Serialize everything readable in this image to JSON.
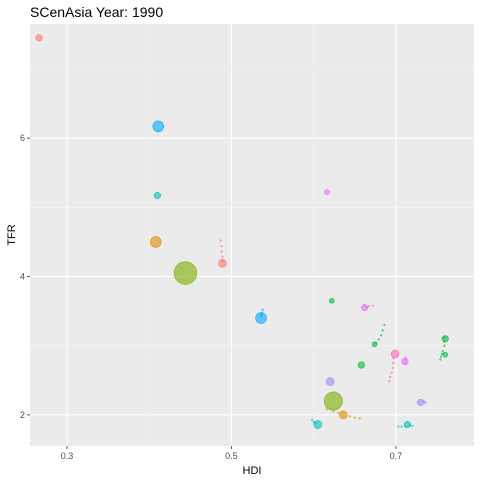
{
  "chart_data": {
    "type": "scatter",
    "title": "SCenAsia Year: 1990",
    "xlabel": "HDI",
    "ylabel": "TFR",
    "xlim": [
      0.255,
      0.795
    ],
    "ylim": [
      1.55,
      7.65
    ],
    "x_ticks": [
      0.3,
      0.5,
      0.7
    ],
    "x_tick_labels": [
      "0.3",
      "0.5",
      "0.7"
    ],
    "y_ticks": [
      2,
      4,
      6
    ],
    "y_tick_labels": [
      "2",
      "4",
      "6"
    ],
    "grid": true,
    "legend": "none",
    "colors": {
      "panel_bg": "#ebebeb",
      "grid_major": "#ffffff",
      "grid_minor": "#f5f5f5",
      "red": "#f8766d",
      "orange": "#e08b00",
      "olive": "#7cae00",
      "green": "#00ba38",
      "teal": "#00bfc4",
      "blue": "#00a9ff",
      "violet": "#9590ff",
      "magenta": "#e76bf3",
      "pink": "#ff62bc"
    },
    "points": [
      {
        "x": 0.266,
        "y": 7.45,
        "size": 3,
        "color": "#f8766d"
      },
      {
        "x": 0.411,
        "y": 6.17,
        "size": 6,
        "color": "#00a9ff"
      },
      {
        "x": 0.41,
        "y": 5.17,
        "size": 3,
        "color": "#00bfc4"
      },
      {
        "x": 0.408,
        "y": 4.5,
        "size": 6,
        "color": "#e08b00"
      },
      {
        "x": 0.444,
        "y": 4.05,
        "size": 14,
        "color": "#7cae00"
      },
      {
        "x": 0.489,
        "y": 4.19,
        "size": 4,
        "color": "#f8766d"
      },
      {
        "x": 0.536,
        "y": 3.4,
        "size": 6,
        "color": "#00a9ff"
      },
      {
        "x": 0.616,
        "y": 5.22,
        "size": 2,
        "color": "#e76bf3"
      },
      {
        "x": 0.622,
        "y": 3.65,
        "size": 2,
        "color": "#00ba38"
      },
      {
        "x": 0.662,
        "y": 3.55,
        "size": 3,
        "color": "#e76bf3"
      },
      {
        "x": 0.674,
        "y": 3.02,
        "size": 2,
        "color": "#00ba38"
      },
      {
        "x": 0.658,
        "y": 2.72,
        "size": 3,
        "color": "#00ba38"
      },
      {
        "x": 0.62,
        "y": 2.48,
        "size": 4,
        "color": "#9590ff"
      },
      {
        "x": 0.699,
        "y": 2.88,
        "size": 4,
        "color": "#ff62bc"
      },
      {
        "x": 0.711,
        "y": 2.77,
        "size": 3,
        "color": "#e76bf3"
      },
      {
        "x": 0.76,
        "y": 3.1,
        "size": 3,
        "color": "#00ba38"
      },
      {
        "x": 0.76,
        "y": 2.87,
        "size": 2,
        "color": "#00ba38"
      },
      {
        "x": 0.73,
        "y": 2.18,
        "size": 3,
        "color": "#9590ff"
      },
      {
        "x": 0.624,
        "y": 2.2,
        "size": 11,
        "color": "#7cae00"
      },
      {
        "x": 0.636,
        "y": 2.0,
        "size": 4,
        "color": "#e08b00"
      },
      {
        "x": 0.605,
        "y": 1.86,
        "size": 4,
        "color": "#00bfc4"
      },
      {
        "x": 0.714,
        "y": 1.86,
        "size": 3,
        "color": "#00bfc4"
      }
    ],
    "trails": [
      {
        "color": "#f8766d",
        "x": [
          0.487,
          0.488,
          0.488,
          0.489,
          0.489
        ],
        "y": [
          4.52,
          4.44,
          4.36,
          4.28,
          4.22
        ]
      },
      {
        "color": "#00a9ff",
        "x": [
          0.538,
          0.537,
          0.537,
          0.536
        ],
        "y": [
          3.52,
          3.48,
          3.45,
          3.43
        ]
      },
      {
        "color": "#e76bf3",
        "x": [
          0.672,
          0.667,
          0.664
        ],
        "y": [
          3.58,
          3.57,
          3.56
        ]
      },
      {
        "color": "#00ba38",
        "x": [
          0.686,
          0.684,
          0.682,
          0.679,
          0.676
        ],
        "y": [
          3.3,
          3.22,
          3.15,
          3.09,
          3.04
        ]
      },
      {
        "color": "#ff62bc",
        "x": [
          0.697,
          0.697,
          0.696,
          0.695,
          0.693,
          0.692
        ],
        "y": [
          2.82,
          2.75,
          2.68,
          2.61,
          2.55,
          2.49
        ]
      },
      {
        "color": "#e76bf3",
        "x": [
          0.712,
          0.712,
          0.711
        ],
        "y": [
          2.83,
          2.8,
          2.74
        ]
      },
      {
        "color": "#00ba38",
        "x": [
          0.759,
          0.759,
          0.759
        ],
        "y": [
          3.12,
          3.06,
          3.0
        ]
      },
      {
        "color": "#00ba38",
        "x": [
          0.757,
          0.756,
          0.755,
          0.754
        ],
        "y": [
          2.92,
          2.88,
          2.84,
          2.8
        ]
      },
      {
        "color": "#9590ff",
        "x": [
          0.733,
          0.735,
          0.736
        ],
        "y": [
          2.2,
          2.19,
          2.17
        ]
      },
      {
        "color": "#e08b00",
        "x": [
          0.616,
          0.624,
          0.63,
          0.644,
          0.65,
          0.656
        ],
        "y": [
          2.08,
          2.05,
          2.03,
          1.98,
          1.96,
          1.95
        ]
      },
      {
        "color": "#00bfc4",
        "x": [
          0.598,
          0.6,
          0.602
        ],
        "y": [
          1.93,
          1.9,
          1.88
        ]
      },
      {
        "color": "#00bfc4",
        "x": [
          0.703,
          0.707,
          0.711,
          0.717,
          0.72
        ],
        "y": [
          1.83,
          1.83,
          1.84,
          1.85,
          1.84
        ]
      }
    ]
  }
}
